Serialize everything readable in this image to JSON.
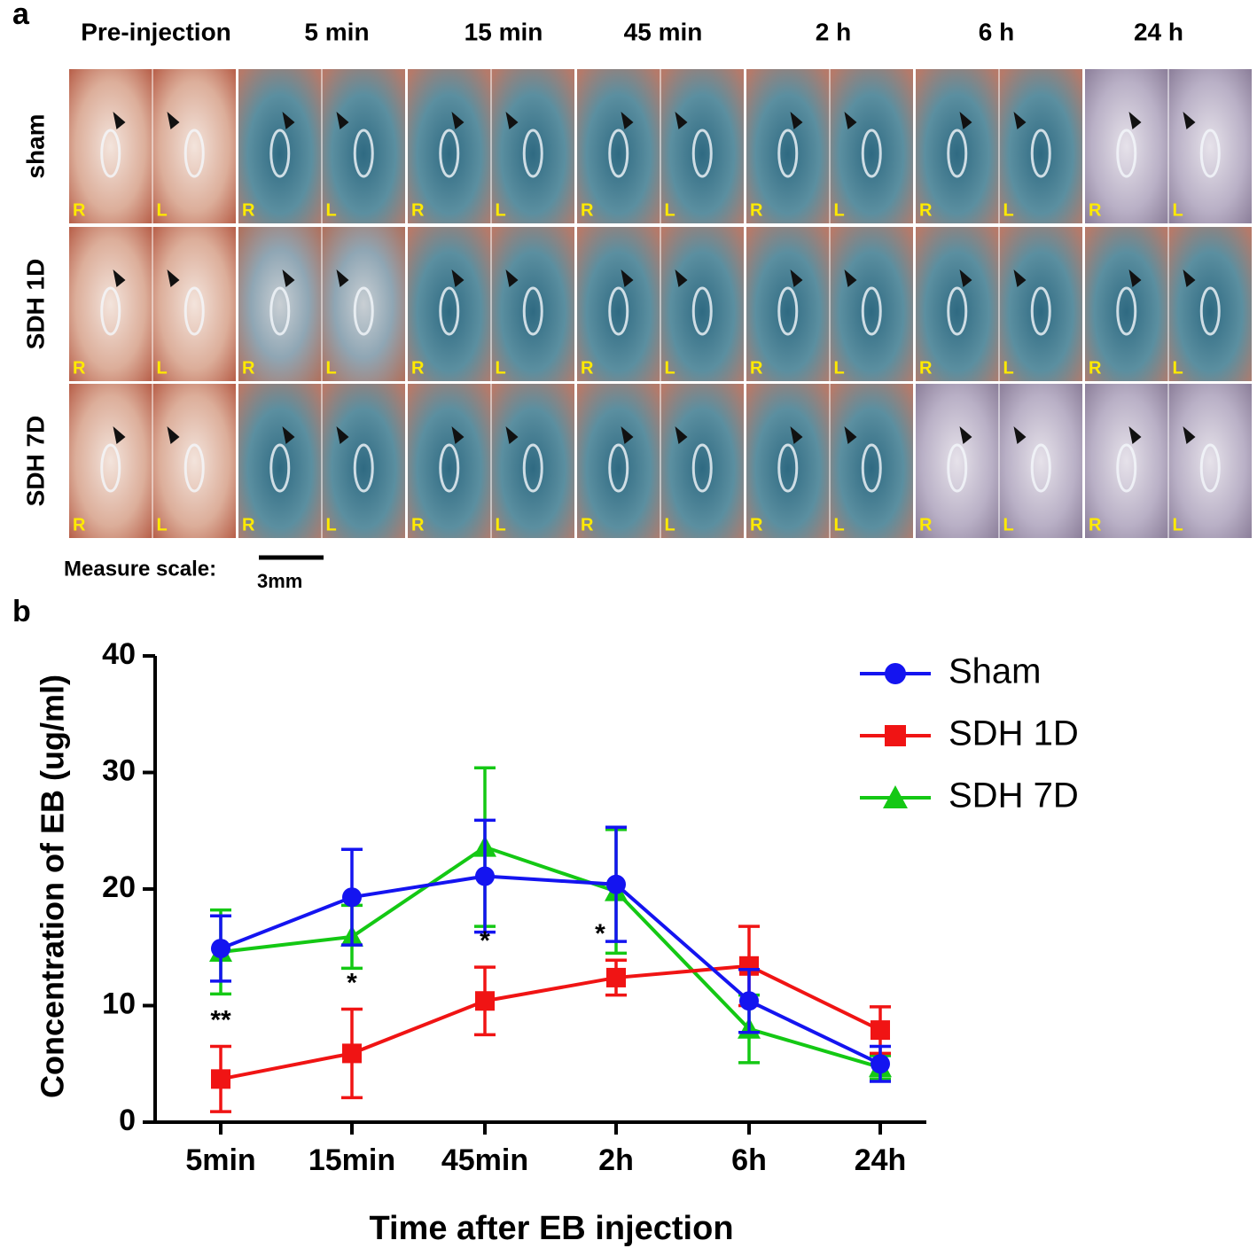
{
  "panel_a": {
    "label": "a",
    "columns": [
      "Pre-injection",
      "5 min",
      "15 min",
      "45 min",
      "2 h",
      "6 h",
      "24 h"
    ],
    "rows": [
      "sham",
      "SDH 1D",
      "SDH 7D"
    ],
    "side_labels": [
      "R",
      "L"
    ],
    "scale_label": "Measure scale:",
    "scale_value": "3mm"
  },
  "chart_data": {
    "type": "line",
    "panel_label": "b",
    "x_label": "Time after EB injection",
    "y_label": "Concentration of EB (ug/ml)",
    "categories": [
      "5min",
      "15min",
      "45min",
      "2h",
      "6h",
      "24h"
    ],
    "ylim": [
      0,
      40
    ],
    "yticks": [
      0,
      10,
      20,
      30,
      40
    ],
    "legend": "top-right",
    "series": [
      {
        "name": "Sham",
        "color": "#1414f0",
        "marker": "circle",
        "values": [
          14.9,
          19.3,
          21.1,
          20.4,
          10.4,
          5.0
        ],
        "errors": [
          2.8,
          4.1,
          4.8,
          4.9,
          2.7,
          1.5
        ]
      },
      {
        "name": "SDH 1D",
        "color": "#f01414",
        "marker": "square",
        "values": [
          3.7,
          5.9,
          10.4,
          12.4,
          13.4,
          7.9
        ],
        "errors": [
          2.8,
          3.8,
          2.9,
          1.5,
          3.4,
          2.0
        ]
      },
      {
        "name": "SDH 7D",
        "color": "#14c814",
        "marker": "triangle",
        "values": [
          14.6,
          15.9,
          23.6,
          19.8,
          8.0,
          4.7
        ],
        "errors": [
          3.6,
          2.7,
          6.8,
          5.3,
          2.9,
          1.0
        ]
      }
    ],
    "significance": [
      "**",
      "*",
      "*",
      "*",
      null,
      null
    ]
  }
}
